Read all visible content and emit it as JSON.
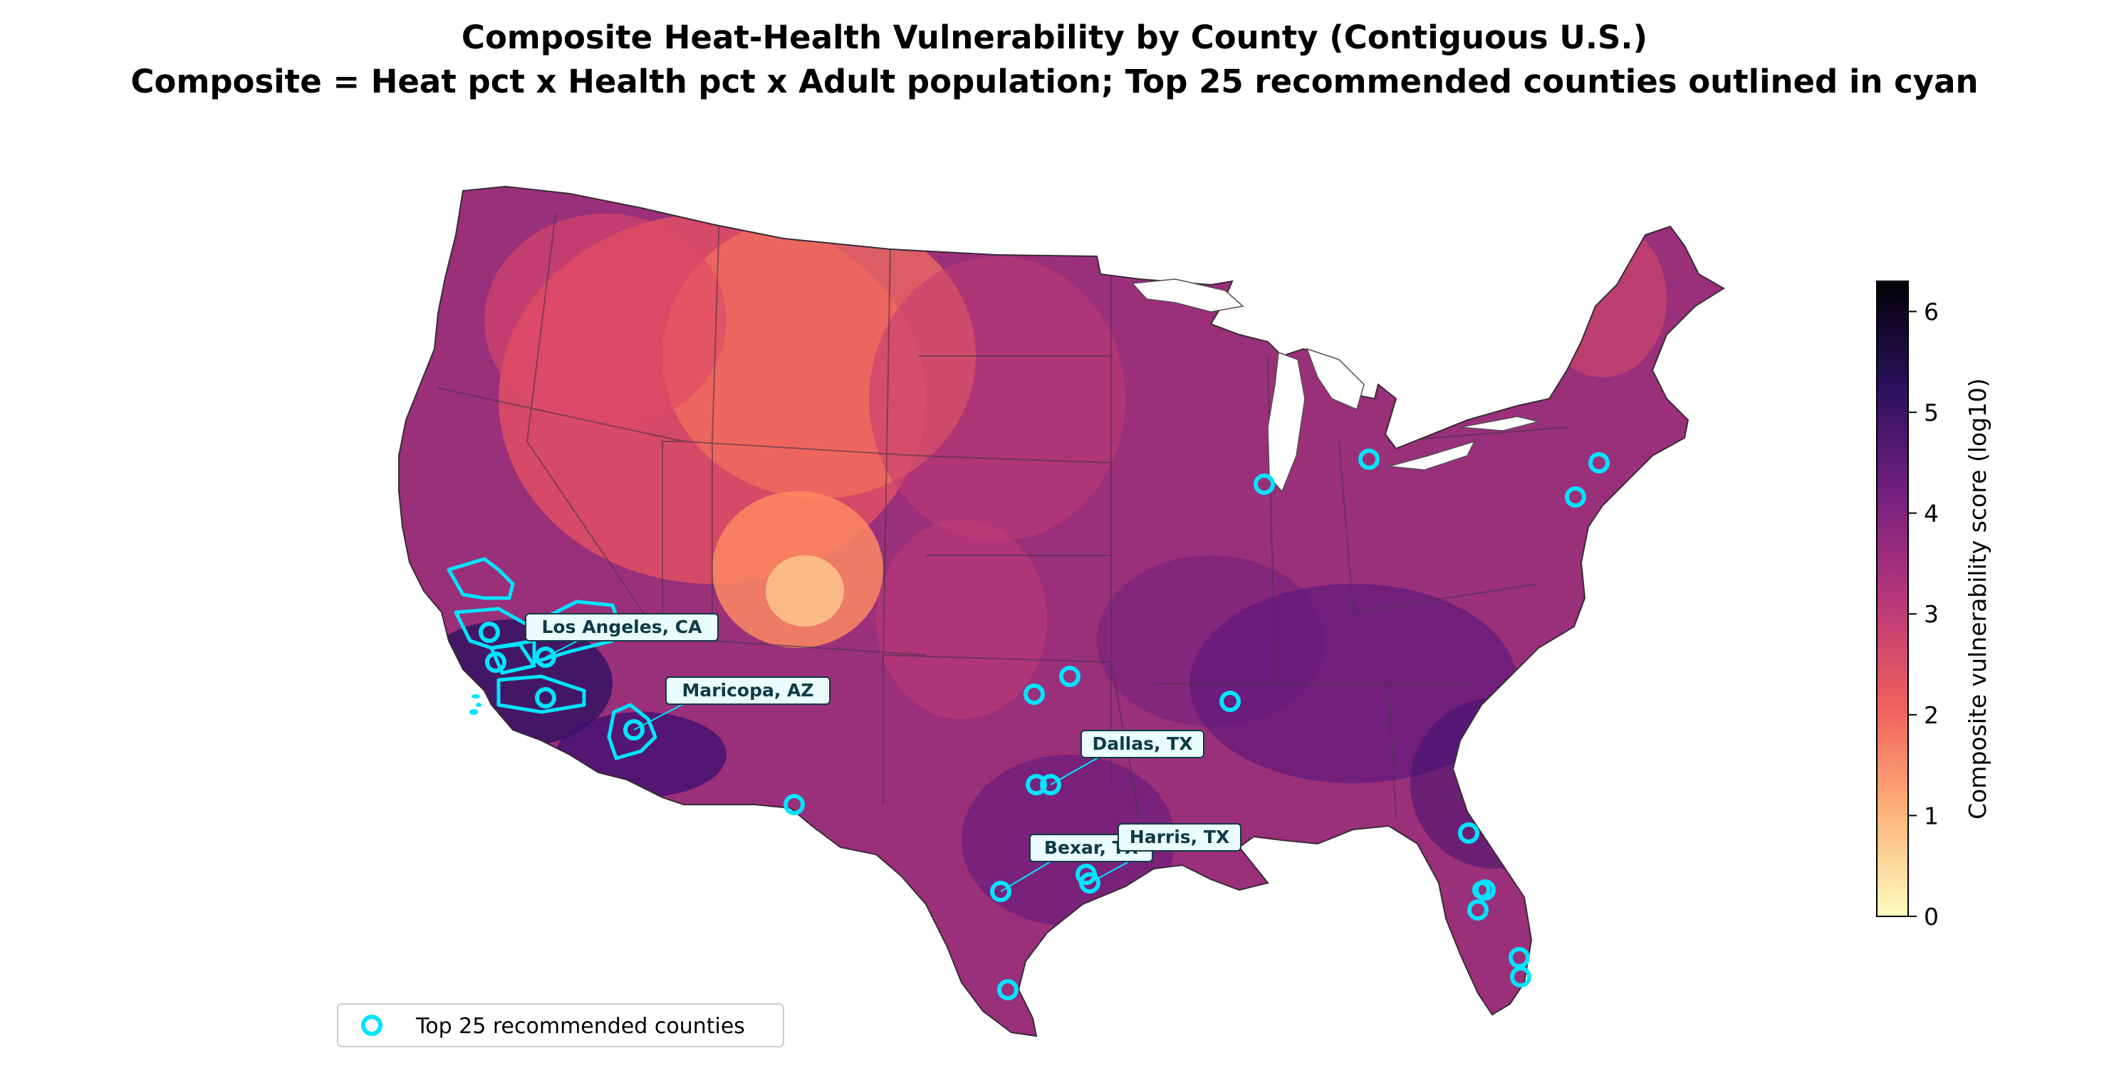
{
  "title": {
    "line1": "Composite Heat-Health Vulnerability by County (Contiguous U.S.)",
    "line2": "Composite = Heat pct x Health pct x Adult population;  Top 25 recommended counties outlined in cyan"
  },
  "colorbar": {
    "label": "Composite vulnerability score (log10)",
    "min": 0,
    "max": 6.3,
    "ticks": [
      0,
      1,
      2,
      3,
      4,
      5,
      6
    ],
    "colormap": "magma_r",
    "stops": [
      "#fcfdbf",
      "#feb078",
      "#f1605d",
      "#b73779",
      "#721f81",
      "#2c115f",
      "#000004"
    ]
  },
  "map": {
    "highlight_color": "#00e5ff",
    "land_color": "#9a2f7a",
    "labeled_counties": [
      {
        "name": "Los Angeles, CA"
      },
      {
        "name": "Maricopa, AZ"
      },
      {
        "name": "Dallas, TX"
      },
      {
        "name": "Harris, TX"
      },
      {
        "name": "Bexar, TX"
      }
    ]
  },
  "legend": {
    "label": "Top 25 recommended counties"
  }
}
